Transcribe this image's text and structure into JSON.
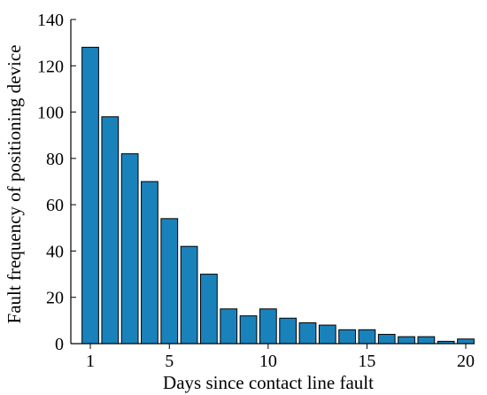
{
  "chart_data": {
    "type": "bar",
    "xlabel": "Days since contact line fault",
    "ylabel": "Fault frequency of positioning device",
    "categories": [
      1,
      2,
      3,
      4,
      5,
      6,
      7,
      8,
      9,
      10,
      11,
      12,
      13,
      14,
      15,
      16,
      17,
      18,
      19,
      20
    ],
    "values": [
      128,
      98,
      82,
      70,
      54,
      42,
      30,
      15,
      12,
      15,
      11,
      9,
      8,
      6,
      6,
      4,
      3,
      3,
      1,
      2
    ],
    "xticks": [
      1,
      5,
      10,
      15,
      20
    ],
    "yticks": [
      0,
      20,
      40,
      60,
      80,
      100,
      120,
      140
    ],
    "ylim": [
      0,
      140
    ],
    "grid": false,
    "bar_color": "#1a82bb",
    "bar_edge_color": "#000000"
  }
}
